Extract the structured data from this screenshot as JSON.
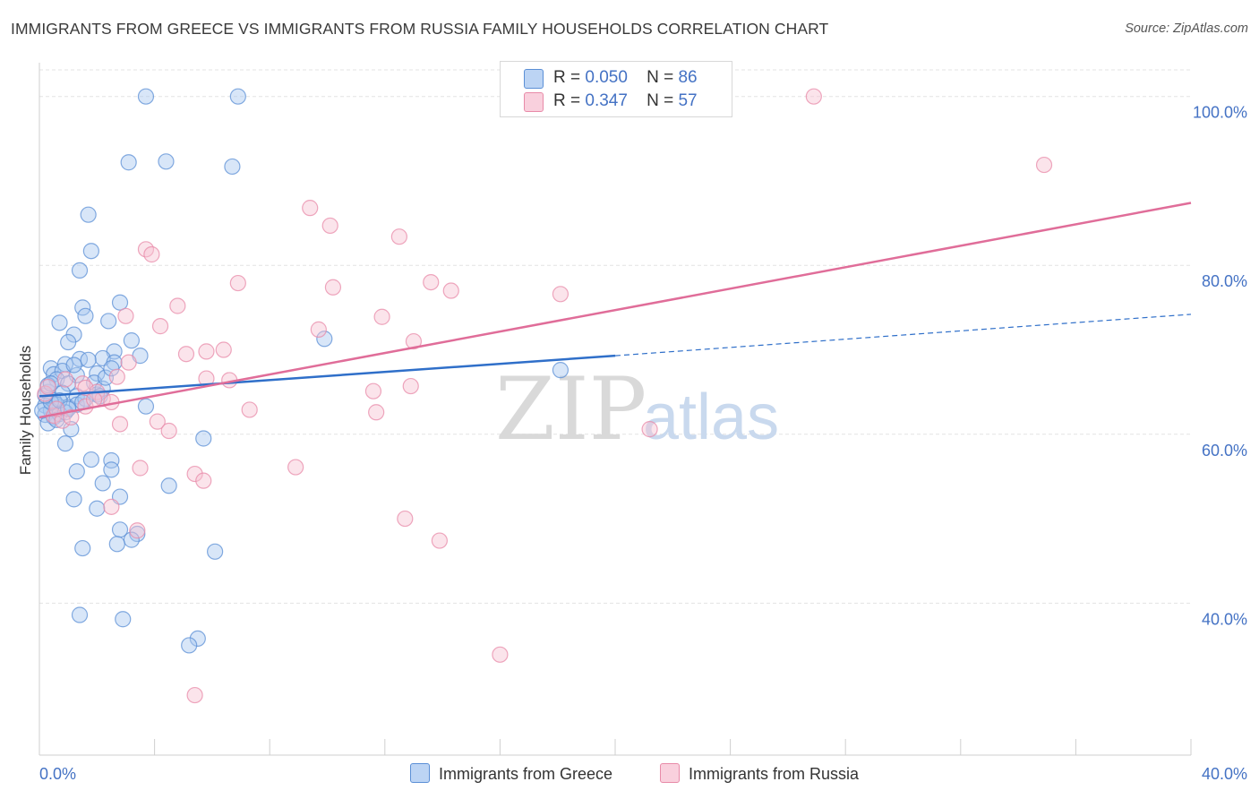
{
  "header": {
    "title": "IMMIGRANTS FROM GREECE VS IMMIGRANTS FROM RUSSIA FAMILY HOUSEHOLDS CORRELATION CHART",
    "source": "Source: ZipAtlas.com"
  },
  "watermark": {
    "zip": "ZIP",
    "atlas": "atlas"
  },
  "legend": {
    "rows": [
      {
        "r_label": "R =",
        "r_value": "0.050",
        "n_label": "N =",
        "n_value": "86"
      },
      {
        "r_label": "R =",
        "r_value": "0.347",
        "n_label": "N =",
        "n_value": "57"
      }
    ]
  },
  "colors": {
    "greece_fill": "#a9c8f0",
    "greece_stroke": "#5b8fd6",
    "greece_line": "#2f6fc9",
    "russia_fill": "#f6c3d3",
    "russia_stroke": "#e88aa8",
    "russia_line": "#e06d99",
    "grid": "#e3e3e3",
    "tick_text": "#4472c4"
  },
  "chart_data": {
    "type": "scatter",
    "title": "IMMIGRANTS FROM GREECE VS IMMIGRANTS FROM RUSSIA FAMILY HOUSEHOLDS CORRELATION CHART",
    "ylabel": "Family Households",
    "xlim": [
      0,
      40
    ],
    "ylim": [
      22,
      104
    ],
    "x_tick_labels": [
      {
        "x": 0,
        "label": "0.0%"
      },
      {
        "x": 40,
        "label": "40.0%"
      }
    ],
    "y_ticks": [
      {
        "y": 40,
        "label": "40.0%"
      },
      {
        "y": 60,
        "label": "60.0%"
      },
      {
        "y": 80,
        "label": "80.0%"
      },
      {
        "y": 100,
        "label": "100.0%"
      }
    ],
    "grid": true,
    "series": [
      {
        "name": "Immigrants from Greece",
        "R": 0.05,
        "N": 86,
        "trend": {
          "solid": [
            [
              0,
              64.5
            ],
            [
              20,
              69.3
            ]
          ],
          "dashed": [
            [
              20,
              69.3
            ],
            [
              40,
              74.2
            ]
          ]
        },
        "points": [
          [
            3.7,
            100
          ],
          [
            6.9,
            100
          ],
          [
            3.1,
            92.2
          ],
          [
            4.4,
            92.3
          ],
          [
            6.7,
            91.7
          ],
          [
            1.7,
            86
          ],
          [
            1.8,
            81.7
          ],
          [
            1.4,
            79.4
          ],
          [
            2.8,
            75.6
          ],
          [
            1.5,
            75
          ],
          [
            1.6,
            74
          ],
          [
            2.4,
            73.4
          ],
          [
            0.7,
            73.2
          ],
          [
            1.2,
            71.8
          ],
          [
            3.2,
            71.1
          ],
          [
            1.0,
            70.9
          ],
          [
            9.9,
            71.3
          ],
          [
            2.6,
            69.8
          ],
          [
            3.5,
            69.3
          ],
          [
            1.4,
            68.9
          ],
          [
            2.2,
            69.0
          ],
          [
            1.7,
            68.8
          ],
          [
            2.6,
            68.5
          ],
          [
            0.9,
            68.3
          ],
          [
            0.4,
            67.8
          ],
          [
            0.5,
            67.1
          ],
          [
            0.8,
            67.5
          ],
          [
            1.3,
            67.0
          ],
          [
            0.6,
            66.5
          ],
          [
            1.0,
            66.0
          ],
          [
            2.0,
            67.2
          ],
          [
            1.9,
            66.1
          ],
          [
            18.1,
            67.6
          ],
          [
            0.3,
            65.0
          ],
          [
            0.8,
            64.9
          ],
          [
            1.3,
            64.5
          ],
          [
            2.0,
            64.7
          ],
          [
            2.2,
            65.4
          ],
          [
            0.5,
            64.0
          ],
          [
            0.2,
            63.4
          ],
          [
            0.6,
            63.5
          ],
          [
            1.0,
            63.2
          ],
          [
            1.3,
            63.5
          ],
          [
            0.4,
            62.8
          ],
          [
            0.2,
            62.3
          ],
          [
            0.5,
            62.0
          ],
          [
            0.7,
            62.4
          ],
          [
            0.3,
            61.3
          ],
          [
            1.1,
            60.6
          ],
          [
            3.7,
            63.3
          ],
          [
            5.7,
            59.5
          ],
          [
            0.9,
            58.9
          ],
          [
            1.8,
            57.0
          ],
          [
            2.5,
            56.9
          ],
          [
            2.5,
            55.8
          ],
          [
            1.3,
            55.6
          ],
          [
            2.2,
            54.2
          ],
          [
            4.5,
            53.9
          ],
          [
            2.8,
            52.6
          ],
          [
            1.2,
            52.3
          ],
          [
            2.0,
            51.2
          ],
          [
            2.8,
            48.7
          ],
          [
            3.4,
            48.2
          ],
          [
            3.2,
            47.5
          ],
          [
            2.7,
            47.0
          ],
          [
            1.5,
            46.5
          ],
          [
            6.1,
            46.1
          ],
          [
            1.4,
            38.6
          ],
          [
            2.9,
            38.1
          ],
          [
            5.5,
            35.8
          ],
          [
            5.2,
            35.0
          ],
          [
            0.1,
            62.8
          ],
          [
            0.4,
            63.8
          ],
          [
            1.6,
            64.2
          ],
          [
            2.3,
            66.7
          ],
          [
            0.6,
            61.7
          ],
          [
            1.2,
            68.2
          ],
          [
            2.5,
            67.8
          ],
          [
            0.2,
            64.6
          ],
          [
            0.9,
            62.6
          ],
          [
            1.5,
            63.8
          ],
          [
            0.3,
            65.8
          ],
          [
            0.7,
            64.0
          ],
          [
            2.1,
            64.5
          ],
          [
            1.0,
            63.0
          ],
          [
            0.4,
            66.0
          ]
        ]
      },
      {
        "name": "Immigrants from Russia",
        "R": 0.347,
        "N": 57,
        "trend": {
          "solid": [
            [
              0,
              62
            ],
            [
              40,
              87.4
            ]
          ]
        },
        "points": [
          [
            26.9,
            100
          ],
          [
            34.9,
            91.9
          ],
          [
            9.4,
            86.8
          ],
          [
            10.1,
            84.7
          ],
          [
            12.5,
            83.4
          ],
          [
            3.7,
            81.9
          ],
          [
            3.9,
            81.3
          ],
          [
            6.9,
            77.9
          ],
          [
            10.2,
            77.4
          ],
          [
            13.6,
            78.0
          ],
          [
            14.3,
            77.0
          ],
          [
            18.1,
            76.6
          ],
          [
            4.8,
            75.2
          ],
          [
            3.0,
            74.0
          ],
          [
            11.9,
            73.9
          ],
          [
            4.2,
            72.8
          ],
          [
            9.7,
            72.4
          ],
          [
            13.0,
            71.0
          ],
          [
            6.4,
            70.0
          ],
          [
            5.1,
            69.5
          ],
          [
            5.8,
            69.8
          ],
          [
            3.1,
            68.5
          ],
          [
            5.8,
            66.6
          ],
          [
            6.6,
            66.4
          ],
          [
            2.7,
            66.8
          ],
          [
            1.5,
            66.0
          ],
          [
            1.6,
            65.5
          ],
          [
            2.0,
            65.0
          ],
          [
            12.9,
            65.7
          ],
          [
            11.6,
            65.1
          ],
          [
            2.2,
            64.2
          ],
          [
            2.5,
            63.8
          ],
          [
            1.6,
            63.3
          ],
          [
            7.3,
            62.9
          ],
          [
            11.7,
            62.6
          ],
          [
            0.5,
            62.2
          ],
          [
            0.8,
            61.6
          ],
          [
            4.1,
            61.5
          ],
          [
            2.8,
            61.2
          ],
          [
            4.5,
            60.4
          ],
          [
            21.2,
            60.6
          ],
          [
            3.5,
            56.0
          ],
          [
            8.9,
            56.1
          ],
          [
            5.4,
            55.3
          ],
          [
            5.7,
            54.5
          ],
          [
            2.5,
            51.4
          ],
          [
            12.7,
            50.0
          ],
          [
            3.4,
            48.6
          ],
          [
            13.9,
            47.4
          ],
          [
            16.0,
            33.9
          ],
          [
            5.4,
            29.1
          ],
          [
            0.2,
            64.8
          ],
          [
            0.6,
            63.0
          ],
          [
            1.1,
            62.0
          ],
          [
            0.3,
            65.6
          ],
          [
            1.9,
            64.1
          ],
          [
            0.9,
            66.5
          ]
        ]
      }
    ]
  },
  "bottom_legend": {
    "greece_label": "Immigrants from Greece",
    "russia_label": "Immigrants from Russia"
  }
}
